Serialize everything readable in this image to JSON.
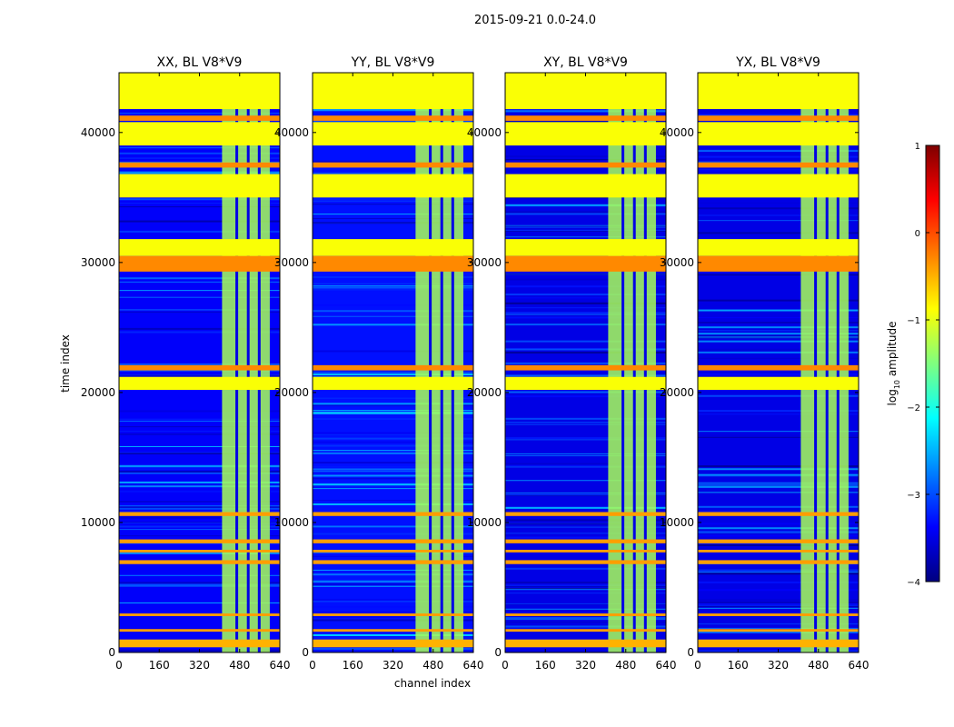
{
  "figure_title": "2015-09-21 0.0-24.0",
  "colors": {
    "jet": [
      "#00007f",
      "#0000ff",
      "#007fff",
      "#00ffff",
      "#7fff7f",
      "#ffff00",
      "#ff7f00",
      "#ff0000",
      "#7f0000"
    ],
    "frame": "#000000",
    "background": "#ffffff"
  },
  "chart_data": {
    "type": "heatmap",
    "shared": {
      "xlabel": "channel index",
      "ylabel": "time index",
      "xlim": [
        0,
        640
      ],
      "ylim": [
        0,
        44600
      ],
      "xticks": [
        0,
        160,
        320,
        480,
        640
      ],
      "yticks": [
        0,
        10000,
        20000,
        30000,
        40000
      ],
      "xtick_labels": [
        "0",
        "160",
        "320",
        "480",
        "640"
      ],
      "ytick_labels": [
        "0",
        "10000",
        "20000",
        "30000",
        "40000"
      ],
      "value_range_log10": [
        -4,
        1
      ],
      "grid": false
    },
    "panels": [
      {
        "title": "XX, BL V8*V9",
        "band_channels": [
          410,
          600
        ],
        "background_log10": -3.4
      },
      {
        "title": "YY, BL V8*V9",
        "band_channels": [
          410,
          600
        ],
        "background_log10": -3.3
      },
      {
        "title": "XY, BL V8*V9",
        "band_channels": [
          410,
          600
        ],
        "background_log10": -3.5
      },
      {
        "title": "YX, BL V8*V9",
        "band_channels": [
          410,
          600
        ],
        "background_log10": -3.5
      }
    ],
    "colorbar": {
      "label": "log10 amplitude",
      "label_main": "log",
      "label_sub": "10",
      "label_rest": " amplitude",
      "range": [
        -4,
        1
      ],
      "ticks": [
        1,
        0,
        -1,
        -2,
        -3,
        -4
      ],
      "tick_labels": [
        "1",
        "0",
        "−1",
        "−2",
        "−3",
        "−4"
      ],
      "colormap": "jet"
    },
    "horizontal_bands": [
      {
        "t0": 41800,
        "t1": 44600,
        "log10": -0.9
      },
      {
        "t0": 39000,
        "t1": 40800,
        "log10": -0.9
      },
      {
        "t0": 35000,
        "t1": 36800,
        "log10": -0.9
      },
      {
        "t0": 30500,
        "t1": 31800,
        "log10": -0.9
      },
      {
        "t0": 29300,
        "t1": 30500,
        "log10": -0.3
      },
      {
        "t0": 20200,
        "t1": 21200,
        "log10": -0.9
      },
      {
        "t0": 21700,
        "t1": 22100,
        "log10": -0.3
      },
      {
        "t0": 40900,
        "t1": 41300,
        "log10": -0.3
      },
      {
        "t0": 37300,
        "t1": 37700,
        "log10": -0.3
      },
      {
        "t0": 10500,
        "t1": 10800,
        "log10": -0.4
      },
      {
        "t0": 8400,
        "t1": 8700,
        "log10": -0.4
      },
      {
        "t0": 7700,
        "t1": 7900,
        "log10": -0.4
      },
      {
        "t0": 6800,
        "t1": 7100,
        "log10": -0.4
      },
      {
        "t0": 2800,
        "t1": 3000,
        "log10": -0.4
      },
      {
        "t0": 1600,
        "t1": 1800,
        "log10": -0.4
      },
      {
        "t0": 400,
        "t1": 1000,
        "log10": -0.5
      }
    ]
  }
}
